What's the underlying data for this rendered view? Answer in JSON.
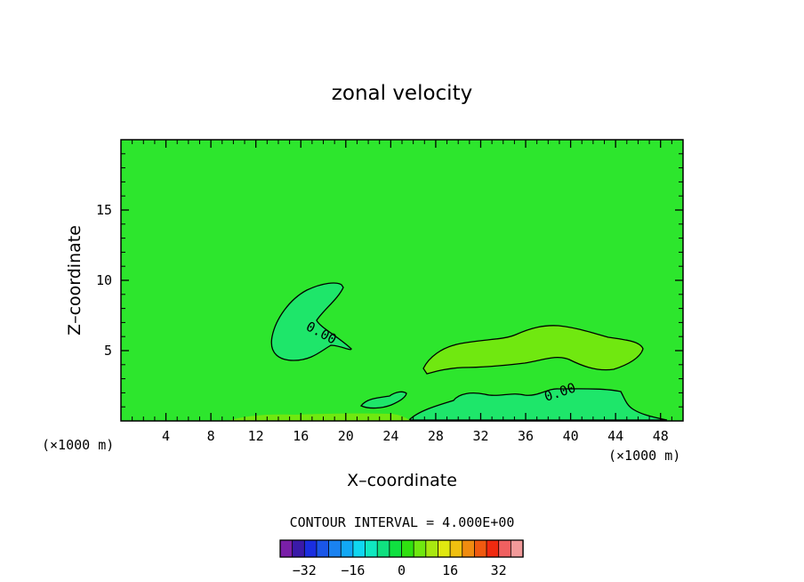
{
  "chart_data": {
    "type": "heatmap",
    "title": "zonal velocity",
    "xlabel": "X–coordinate",
    "ylabel": "Z–coordinate",
    "x_unit": "(×1000 m)",
    "xlim": [
      0,
      50
    ],
    "ylim": [
      0,
      20
    ],
    "x_ticks": [
      "4",
      "8",
      "12",
      "16",
      "20",
      "24",
      "28",
      "32",
      "36",
      "40",
      "44",
      "48"
    ],
    "y_ticks": [
      "5",
      "10",
      "15"
    ],
    "contour_labels": [
      "0.00",
      "0.00"
    ],
    "contour_interval_text": "CONTOUR INTERVAL = 4.000E+00",
    "colorbar": {
      "colors": [
        "#7a1fa8",
        "#3a1aa8",
        "#1a2ee0",
        "#1a56e8",
        "#1a82f0",
        "#12a8f5",
        "#10d6f0",
        "#10e8c0",
        "#10e080",
        "#10e040",
        "#30e010",
        "#70e810",
        "#a8e810",
        "#e0e810",
        "#f0c010",
        "#f08c10",
        "#f05a10",
        "#f02a10",
        "#f06060",
        "#f29a9a"
      ],
      "tick_labels": [
        "−32",
        "−16",
        "0",
        "16",
        "32"
      ],
      "tick_values": [
        -32,
        -16,
        0,
        16,
        32
      ],
      "interval": 4
    },
    "background_color": "#2de62d"
  }
}
